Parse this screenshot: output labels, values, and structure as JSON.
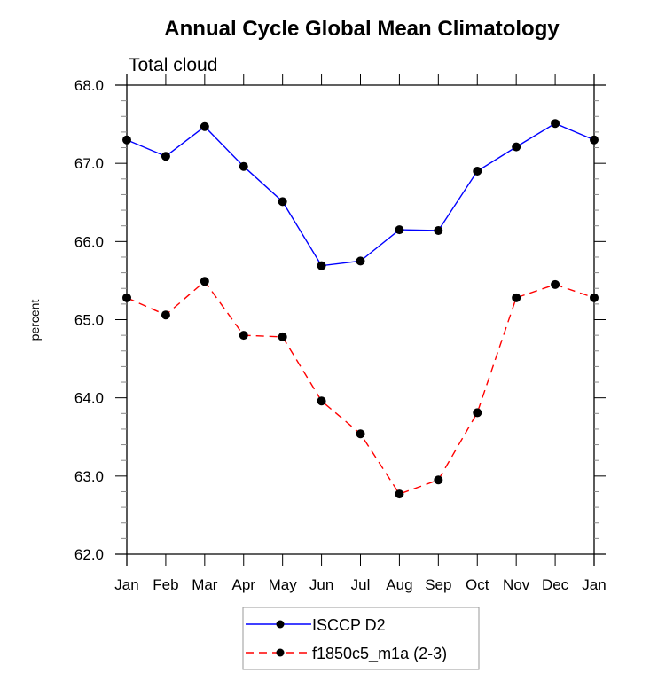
{
  "chart_data": {
    "type": "line",
    "title": "Annual Cycle Global Mean Climatology",
    "subtitle": "Total cloud",
    "xlabel": "",
    "ylabel": "percent",
    "categories": [
      "Jan",
      "Feb",
      "Mar",
      "Apr",
      "May",
      "Jun",
      "Jul",
      "Aug",
      "Sep",
      "Oct",
      "Nov",
      "Dec",
      "Jan"
    ],
    "ylim": [
      62.0,
      68.0
    ],
    "yticks": [
      "62.0",
      "63.0",
      "64.0",
      "65.0",
      "66.0",
      "67.0",
      "68.0"
    ],
    "yminor_step": 0.2,
    "grid": false,
    "legend_position": "bottom-center",
    "series": [
      {
        "name": "ISCCP D2",
        "color": "#0000ff",
        "line_style": "solid",
        "marker": "filled-circle",
        "marker_color": "#000000",
        "values": [
          67.3,
          67.09,
          67.47,
          66.96,
          66.51,
          65.69,
          65.75,
          66.15,
          66.14,
          66.9,
          67.21,
          67.51,
          67.3
        ]
      },
      {
        "name": "f1850c5_m1a (2-3)",
        "color": "#ff0000",
        "line_style": "dashed",
        "marker": "filled-circle",
        "marker_color": "#000000",
        "values": [
          65.28,
          65.06,
          65.49,
          64.8,
          64.78,
          63.96,
          63.54,
          62.77,
          62.95,
          63.81,
          65.28,
          65.45,
          65.28
        ]
      }
    ]
  }
}
